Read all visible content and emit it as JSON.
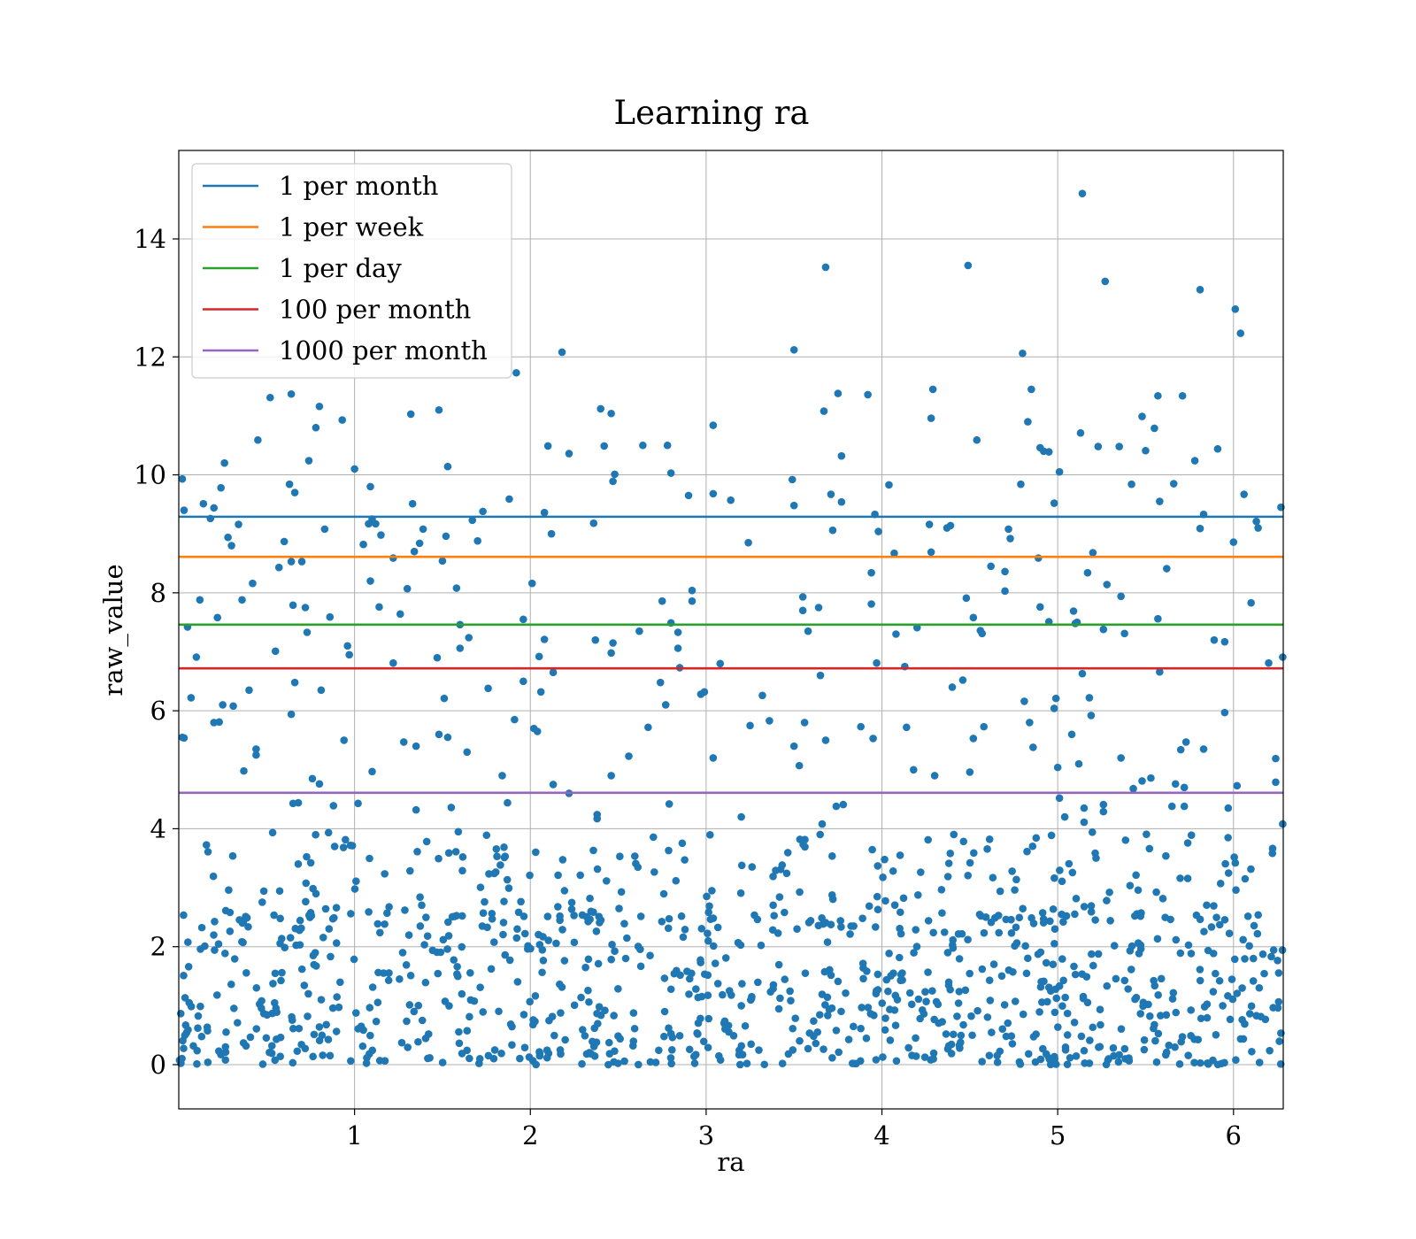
{
  "chart_data": {
    "type": "scatter",
    "title": "Learning ra",
    "xlabel": "ra",
    "ylabel": "raw_value",
    "xlim": [
      0.0,
      6.283
    ],
    "ylim": [
      -0.75,
      15.5
    ],
    "xticks": [
      1,
      2,
      3,
      4,
      5,
      6
    ],
    "yticks": [
      0,
      2,
      4,
      6,
      8,
      10,
      12,
      14
    ],
    "grid": true,
    "legend_position": "top-left",
    "point_color": "#1f77b4",
    "reference_lines": [
      {
        "name": "1 per month",
        "y": 9.29,
        "color": "#1f77b4"
      },
      {
        "name": "1 per week",
        "y": 8.61,
        "color": "#ff7f0e"
      },
      {
        "name": "1 per day",
        "y": 7.46,
        "color": "#2ca02c"
      },
      {
        "name": "100 per month",
        "y": 6.72,
        "color": "#d62728"
      },
      {
        "name": "1000 per month",
        "y": 4.61,
        "color": "#9467bd"
      }
    ],
    "points": [
      [
        0.02,
        9.93
      ],
      [
        0.03,
        9.4
      ],
      [
        0.05,
        7.42
      ],
      [
        0.07,
        6.22
      ],
      [
        0.02,
        5.55
      ],
      [
        0.1,
        6.91
      ],
      [
        0.12,
        7.88
      ],
      [
        0.14,
        9.51
      ],
      [
        0.18,
        9.26
      ],
      [
        0.2,
        9.44
      ],
      [
        0.24,
        9.78
      ],
      [
        0.26,
        10.2
      ],
      [
        0.28,
        8.94
      ],
      [
        0.3,
        8.8
      ],
      [
        0.34,
        9.16
      ],
      [
        0.22,
        7.58
      ],
      [
        0.36,
        7.88
      ],
      [
        0.4,
        6.35
      ],
      [
        0.42,
        8.16
      ],
      [
        0.45,
        10.59
      ],
      [
        0.52,
        11.31
      ],
      [
        0.55,
        7.01
      ],
      [
        0.57,
        8.43
      ],
      [
        0.6,
        8.87
      ],
      [
        0.63,
        9.84
      ],
      [
        0.64,
        11.37
      ],
      [
        0.66,
        9.7
      ],
      [
        0.7,
        8.53
      ],
      [
        0.74,
        10.24
      ],
      [
        0.78,
        10.8
      ],
      [
        0.8,
        11.16
      ],
      [
        0.83,
        9.08
      ],
      [
        0.64,
        8.53
      ],
      [
        0.65,
        7.79
      ],
      [
        0.72,
        7.75
      ],
      [
        0.73,
        7.33
      ],
      [
        0.66,
        6.48
      ],
      [
        0.86,
        7.59
      ],
      [
        0.81,
        6.35
      ],
      [
        0.93,
        10.93
      ],
      [
        0.96,
        7.1
      ],
      [
        0.97,
        6.95
      ],
      [
        1.0,
        10.1
      ],
      [
        1.05,
        8.82
      ],
      [
        1.08,
        9.17
      ],
      [
        1.09,
        9.8
      ],
      [
        1.1,
        9.25
      ],
      [
        1.12,
        9.17
      ],
      [
        1.15,
        8.98
      ],
      [
        1.09,
        8.2
      ],
      [
        1.14,
        7.76
      ],
      [
        1.22,
        8.59
      ],
      [
        1.22,
        6.81
      ],
      [
        1.26,
        7.64
      ],
      [
        1.3,
        8.07
      ],
      [
        1.33,
        9.51
      ],
      [
        1.34,
        8.7
      ],
      [
        1.32,
        11.03
      ],
      [
        1.48,
        11.1
      ],
      [
        1.53,
        10.14
      ],
      [
        1.37,
        8.84
      ],
      [
        1.39,
        9.08
      ],
      [
        1.52,
        8.96
      ],
      [
        1.58,
        8.08
      ],
      [
        1.6,
        7.46
      ],
      [
        1.65,
        7.24
      ],
      [
        1.5,
        8.54
      ],
      [
        1.47,
        6.9
      ],
      [
        1.6,
        7.06
      ],
      [
        1.67,
        9.23
      ],
      [
        1.7,
        8.88
      ],
      [
        1.73,
        9.38
      ],
      [
        1.88,
        9.59
      ],
      [
        1.92,
        11.73
      ],
      [
        1.96,
        7.55
      ],
      [
        2.01,
        8.16
      ],
      [
        2.08,
        9.36
      ],
      [
        2.12,
        9.0
      ],
      [
        2.18,
        12.08
      ],
      [
        2.22,
        10.36
      ],
      [
        2.1,
        10.49
      ],
      [
        2.36,
        9.18
      ],
      [
        2.4,
        11.12
      ],
      [
        2.42,
        10.49
      ],
      [
        2.46,
        11.04
      ],
      [
        2.48,
        10.01
      ],
      [
        2.47,
        9.89
      ],
      [
        2.37,
        7.2
      ],
      [
        2.47,
        7.15
      ],
      [
        2.46,
        6.98
      ],
      [
        2.08,
        7.21
      ],
      [
        2.13,
        6.65
      ],
      [
        2.05,
        6.92
      ],
      [
        2.64,
        10.5
      ],
      [
        2.78,
        10.5
      ],
      [
        2.8,
        10.03
      ],
      [
        2.62,
        7.35
      ],
      [
        2.75,
        7.86
      ],
      [
        2.8,
        7.49
      ],
      [
        2.84,
        7.33
      ],
      [
        2.84,
        7.06
      ],
      [
        2.85,
        6.73
      ],
      [
        2.9,
        9.65
      ],
      [
        2.92,
        8.04
      ],
      [
        2.92,
        7.86
      ],
      [
        3.04,
        10.84
      ],
      [
        3.04,
        9.68
      ],
      [
        3.14,
        9.57
      ],
      [
        3.24,
        8.85
      ],
      [
        3.08,
        6.8
      ],
      [
        3.5,
        12.12
      ],
      [
        3.49,
        9.92
      ],
      [
        3.5,
        9.48
      ],
      [
        3.68,
        13.52
      ],
      [
        3.67,
        11.08
      ],
      [
        3.75,
        11.38
      ],
      [
        3.77,
        10.32
      ],
      [
        3.71,
        9.67
      ],
      [
        3.77,
        9.54
      ],
      [
        3.72,
        9.06
      ],
      [
        3.55,
        7.93
      ],
      [
        3.55,
        7.7
      ],
      [
        3.58,
        7.35
      ],
      [
        3.64,
        7.75
      ],
      [
        3.65,
        6.6
      ],
      [
        3.92,
        11.36
      ],
      [
        3.94,
        8.34
      ],
      [
        3.94,
        7.81
      ],
      [
        3.96,
        9.33
      ],
      [
        3.98,
        9.04
      ],
      [
        3.97,
        6.81
      ],
      [
        4.04,
        9.83
      ],
      [
        4.07,
        8.67
      ],
      [
        4.08,
        7.3
      ],
      [
        4.13,
        6.75
      ],
      [
        4.28,
        10.96
      ],
      [
        4.29,
        11.45
      ],
      [
        4.27,
        9.16
      ],
      [
        4.28,
        8.69
      ],
      [
        4.2,
        7.41
      ],
      [
        4.37,
        9.1
      ],
      [
        4.39,
        9.14
      ],
      [
        4.49,
        13.55
      ],
      [
        4.52,
        7.58
      ],
      [
        4.48,
        7.91
      ],
      [
        4.56,
        7.36
      ],
      [
        4.57,
        7.31
      ],
      [
        4.54,
        10.59
      ],
      [
        4.62,
        8.45
      ],
      [
        4.7,
        8.36
      ],
      [
        4.72,
        9.08
      ],
      [
        4.73,
        8.92
      ],
      [
        4.7,
        8.03
      ],
      [
        4.8,
        12.06
      ],
      [
        4.85,
        11.45
      ],
      [
        4.83,
        10.9
      ],
      [
        4.79,
        9.84
      ],
      [
        4.9,
        10.46
      ],
      [
        4.92,
        10.4
      ],
      [
        4.95,
        10.39
      ],
      [
        4.89,
        8.59
      ],
      [
        4.9,
        7.76
      ],
      [
        4.95,
        7.51
      ],
      [
        4.98,
        9.52
      ],
      [
        5.01,
        10.05
      ],
      [
        5.14,
        14.77
      ],
      [
        5.13,
        10.71
      ],
      [
        5.23,
        10.48
      ],
      [
        5.27,
        13.28
      ],
      [
        5.28,
        8.14
      ],
      [
        5.09,
        7.69
      ],
      [
        5.1,
        7.48
      ],
      [
        5.11,
        7.5
      ],
      [
        5.17,
        8.34
      ],
      [
        5.2,
        8.68
      ],
      [
        5.26,
        7.38
      ],
      [
        5.35,
        10.48
      ],
      [
        5.36,
        7.94
      ],
      [
        5.38,
        7.31
      ],
      [
        5.42,
        9.84
      ],
      [
        5.48,
        10.99
      ],
      [
        5.5,
        10.41
      ],
      [
        5.55,
        10.79
      ],
      [
        5.57,
        11.34
      ],
      [
        5.58,
        9.55
      ],
      [
        5.62,
        8.41
      ],
      [
        5.66,
        9.85
      ],
      [
        5.71,
        11.34
      ],
      [
        5.78,
        10.24
      ],
      [
        5.81,
        13.14
      ],
      [
        5.83,
        9.33
      ],
      [
        5.89,
        7.2
      ],
      [
        5.91,
        10.44
      ],
      [
        5.95,
        7.17
      ],
      [
        5.81,
        9.09
      ],
      [
        5.57,
        7.56
      ],
      [
        5.58,
        6.66
      ],
      [
        6.0,
        8.86
      ],
      [
        6.01,
        12.81
      ],
      [
        6.04,
        12.4
      ],
      [
        6.06,
        9.67
      ],
      [
        6.1,
        7.83
      ],
      [
        6.13,
        9.21
      ],
      [
        6.14,
        9.1
      ],
      [
        6.2,
        6.81
      ],
      [
        6.27,
        9.45
      ],
      [
        6.28,
        6.91
      ],
      [
        0.03,
        5.54
      ],
      [
        0.2,
        5.8
      ],
      [
        0.25,
        6.1
      ],
      [
        0.31,
        6.08
      ],
      [
        0.37,
        4.98
      ],
      [
        0.44,
        5.25
      ],
      [
        0.44,
        5.35
      ],
      [
        0.23,
        5.81
      ],
      [
        0.64,
        5.94
      ],
      [
        0.76,
        4.85
      ],
      [
        0.8,
        4.76
      ],
      [
        0.94,
        5.5
      ],
      [
        1.1,
        4.97
      ],
      [
        1.28,
        5.47
      ],
      [
        1.35,
        5.4
      ],
      [
        1.48,
        5.6
      ],
      [
        1.51,
        6.21
      ],
      [
        1.53,
        5.55
      ],
      [
        1.64,
        5.3
      ],
      [
        1.76,
        6.38
      ],
      [
        1.84,
        4.9
      ],
      [
        1.91,
        5.85
      ],
      [
        1.96,
        6.5
      ],
      [
        2.02,
        5.7
      ],
      [
        2.04,
        5.65
      ],
      [
        2.06,
        6.32
      ],
      [
        2.13,
        4.75
      ],
      [
        2.22,
        4.6
      ],
      [
        2.46,
        4.9
      ],
      [
        2.56,
        5.23
      ],
      [
        2.67,
        5.72
      ],
      [
        2.74,
        6.48
      ],
      [
        2.77,
        6.1
      ],
      [
        2.97,
        6.28
      ],
      [
        2.99,
        6.32
      ],
      [
        3.04,
        5.2
      ],
      [
        3.25,
        5.75
      ],
      [
        3.32,
        6.26
      ],
      [
        3.36,
        5.83
      ],
      [
        3.5,
        5.4
      ],
      [
        3.53,
        5.07
      ],
      [
        3.56,
        5.8
      ],
      [
        3.68,
        5.5
      ],
      [
        3.88,
        5.73
      ],
      [
        3.95,
        5.53
      ],
      [
        4.14,
        5.72
      ],
      [
        4.18,
        5.0
      ],
      [
        4.4,
        6.4
      ],
      [
        4.46,
        6.52
      ],
      [
        4.52,
        5.53
      ],
      [
        4.58,
        5.73
      ],
      [
        4.81,
        6.16
      ],
      [
        4.84,
        5.8
      ],
      [
        4.86,
        5.38
      ],
      [
        4.98,
        6.04
      ],
      [
        4.99,
        6.21
      ],
      [
        5.0,
        5.04
      ],
      [
        5.08,
        5.6
      ],
      [
        5.14,
        6.63
      ],
      [
        5.18,
        6.22
      ],
      [
        5.19,
        5.92
      ],
      [
        5.36,
        5.2
      ],
      [
        5.48,
        4.81
      ],
      [
        5.53,
        4.86
      ],
      [
        5.67,
        4.76
      ],
      [
        5.7,
        5.34
      ],
      [
        5.73,
        5.47
      ],
      [
        5.83,
        5.35
      ],
      [
        5.95,
        5.97
      ],
      [
        6.24,
        5.19
      ],
      [
        6.24,
        4.79
      ],
      [
        6.02,
        4.73
      ],
      [
        5.72,
        4.7
      ],
      [
        5.12,
        5.1
      ],
      [
        4.3,
        4.9
      ],
      [
        0.65,
        4.43
      ],
      [
        0.68,
        4.44
      ],
      [
        0.88,
        4.39
      ],
      [
        1.02,
        4.43
      ],
      [
        1.35,
        4.32
      ],
      [
        1.55,
        4.36
      ],
      [
        1.87,
        4.44
      ],
      [
        2.38,
        4.24
      ],
      [
        2.38,
        4.17
      ],
      [
        2.79,
        4.42
      ],
      [
        3.2,
        4.2
      ],
      [
        3.66,
        4.08
      ],
      [
        3.74,
        4.38
      ],
      [
        3.78,
        4.41
      ],
      [
        4.5,
        4.96
      ],
      [
        5.01,
        4.52
      ],
      [
        5.04,
        4.2
      ],
      [
        5.15,
        4.35
      ],
      [
        5.15,
        4.11
      ],
      [
        5.26,
        4.41
      ],
      [
        5.26,
        4.29
      ],
      [
        5.43,
        4.68
      ],
      [
        5.65,
        4.38
      ],
      [
        5.72,
        4.38
      ],
      [
        5.97,
        4.35
      ],
      [
        6.28,
        4.08
      ]
    ]
  }
}
